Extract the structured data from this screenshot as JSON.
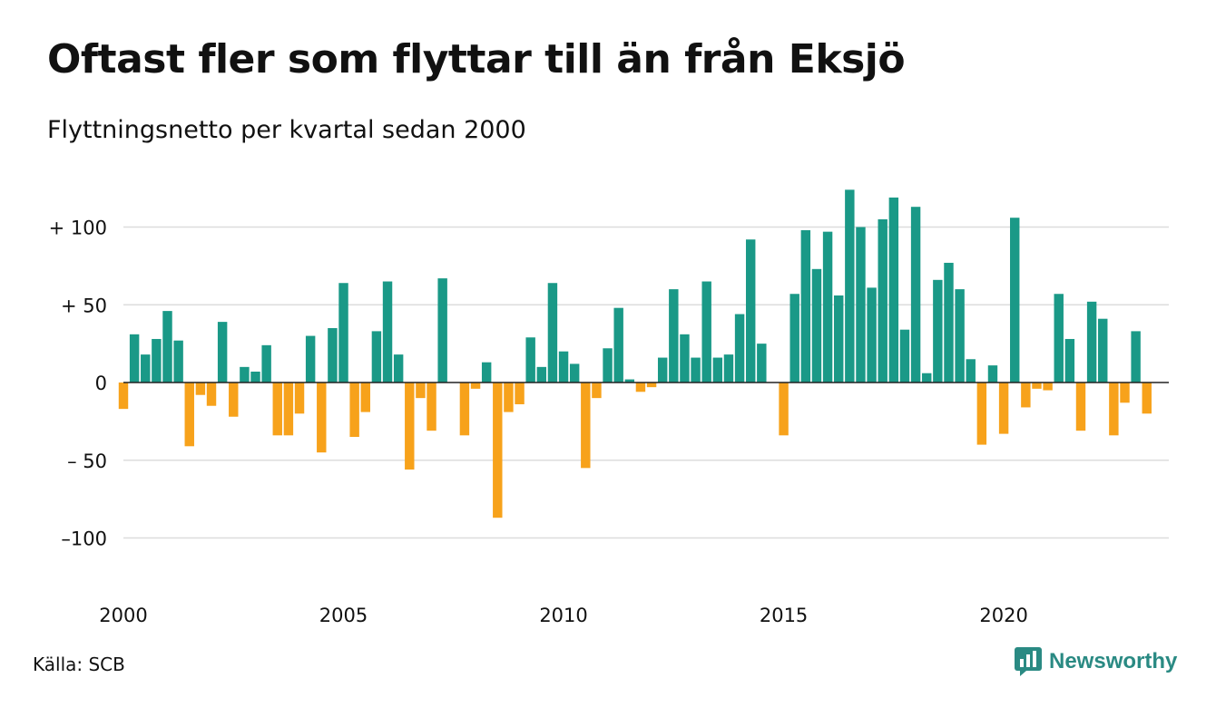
{
  "chart_data": {
    "type": "bar",
    "title": "Oftast fler som flyttar till än från Eksjö",
    "subtitle": "Flyttningsnetto per kvartal sedan 2000",
    "source": "Källa: SCB",
    "brand": "Newsworthy",
    "colors": {
      "positive": "#1a9987",
      "negative": "#f7a21b",
      "grid": "#dddddd",
      "zero": "#222222"
    },
    "x_start": 2000,
    "x_end": 2023.75,
    "x_axis_max": 2023.75,
    "periods_per_year": 4,
    "ylim": [
      -130,
      130
    ],
    "yticks": [
      {
        "value": 100,
        "label": "+ 100"
      },
      {
        "value": 50,
        "label": "+  50"
      },
      {
        "value": 0,
        "label": "0"
      },
      {
        "value": -50,
        "label": "– 50"
      },
      {
        "value": -100,
        "label": "–100"
      }
    ],
    "xticks": [
      {
        "value": 2000,
        "label": "2000"
      },
      {
        "value": 2005,
        "label": "2005"
      },
      {
        "value": 2010,
        "label": "2010"
      },
      {
        "value": 2015,
        "label": "2015"
      },
      {
        "value": 2020,
        "label": "2020"
      }
    ],
    "values": [
      -17,
      31,
      18,
      28,
      46,
      27,
      -41,
      -8,
      -15,
      39,
      -22,
      10,
      7,
      24,
      -34,
      -34,
      -20,
      30,
      -45,
      35,
      64,
      -35,
      -19,
      33,
      65,
      18,
      -56,
      -10,
      -31,
      67,
      0,
      -34,
      -4,
      13,
      -87,
      -19,
      -14,
      29,
      10,
      64,
      20,
      12,
      -55,
      -10,
      22,
      48,
      2,
      -6,
      -3,
      16,
      60,
      31,
      16,
      65,
      16,
      18,
      44,
      92,
      25,
      0,
      -34,
      57,
      98,
      73,
      97,
      56,
      124,
      100,
      61,
      105,
      119,
      34,
      113,
      6,
      66,
      77,
      60,
      15,
      -40,
      11,
      -33,
      106,
      -16,
      -4,
      -5,
      57,
      28,
      -31,
      52,
      41,
      -34,
      -13,
      33,
      -20
    ]
  }
}
